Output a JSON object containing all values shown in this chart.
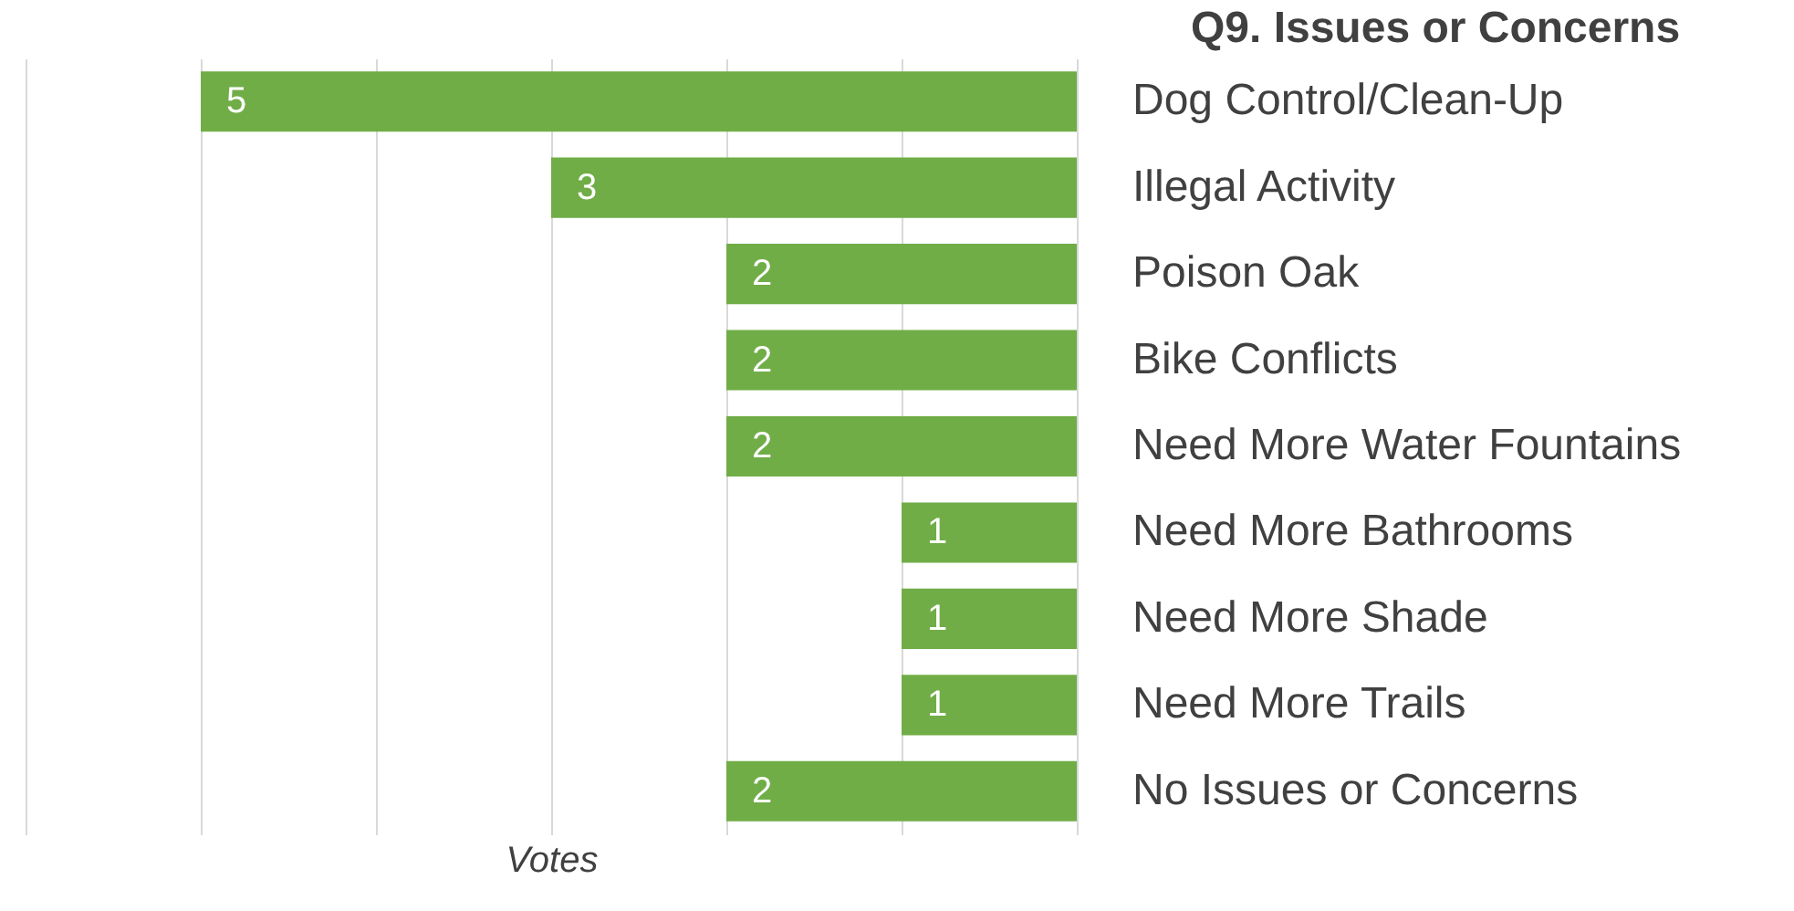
{
  "chart_data": {
    "type": "bar",
    "orientation": "horizontal",
    "title": "Q9. Issues or Concerns",
    "xlabel": "Votes",
    "categories": [
      "Dog Control/Clean-Up",
      "Illegal Activity",
      "Poison Oak",
      "Bike Conflicts",
      "Need More Water Fountains",
      "Need More Bathrooms",
      "Need More Shade",
      "Need More Trails",
      "No Issues or Concerns"
    ],
    "values": [
      5,
      3,
      2,
      2,
      2,
      1,
      1,
      1,
      2
    ],
    "color": "#70ad47",
    "xlim": [
      6,
      0
    ],
    "xticks": [
      {
        "value": 6,
        "label": null
      },
      {
        "value": 5,
        "label": null
      },
      {
        "value": 4,
        "label": null
      },
      {
        "value": 3,
        "label": null
      },
      {
        "value": 2,
        "label": null
      },
      {
        "value": 1,
        "label": null
      },
      {
        "value": 0,
        "label": null
      }
    ],
    "grid": "x",
    "tick_labels": "y",
    "data_labels": true
  }
}
